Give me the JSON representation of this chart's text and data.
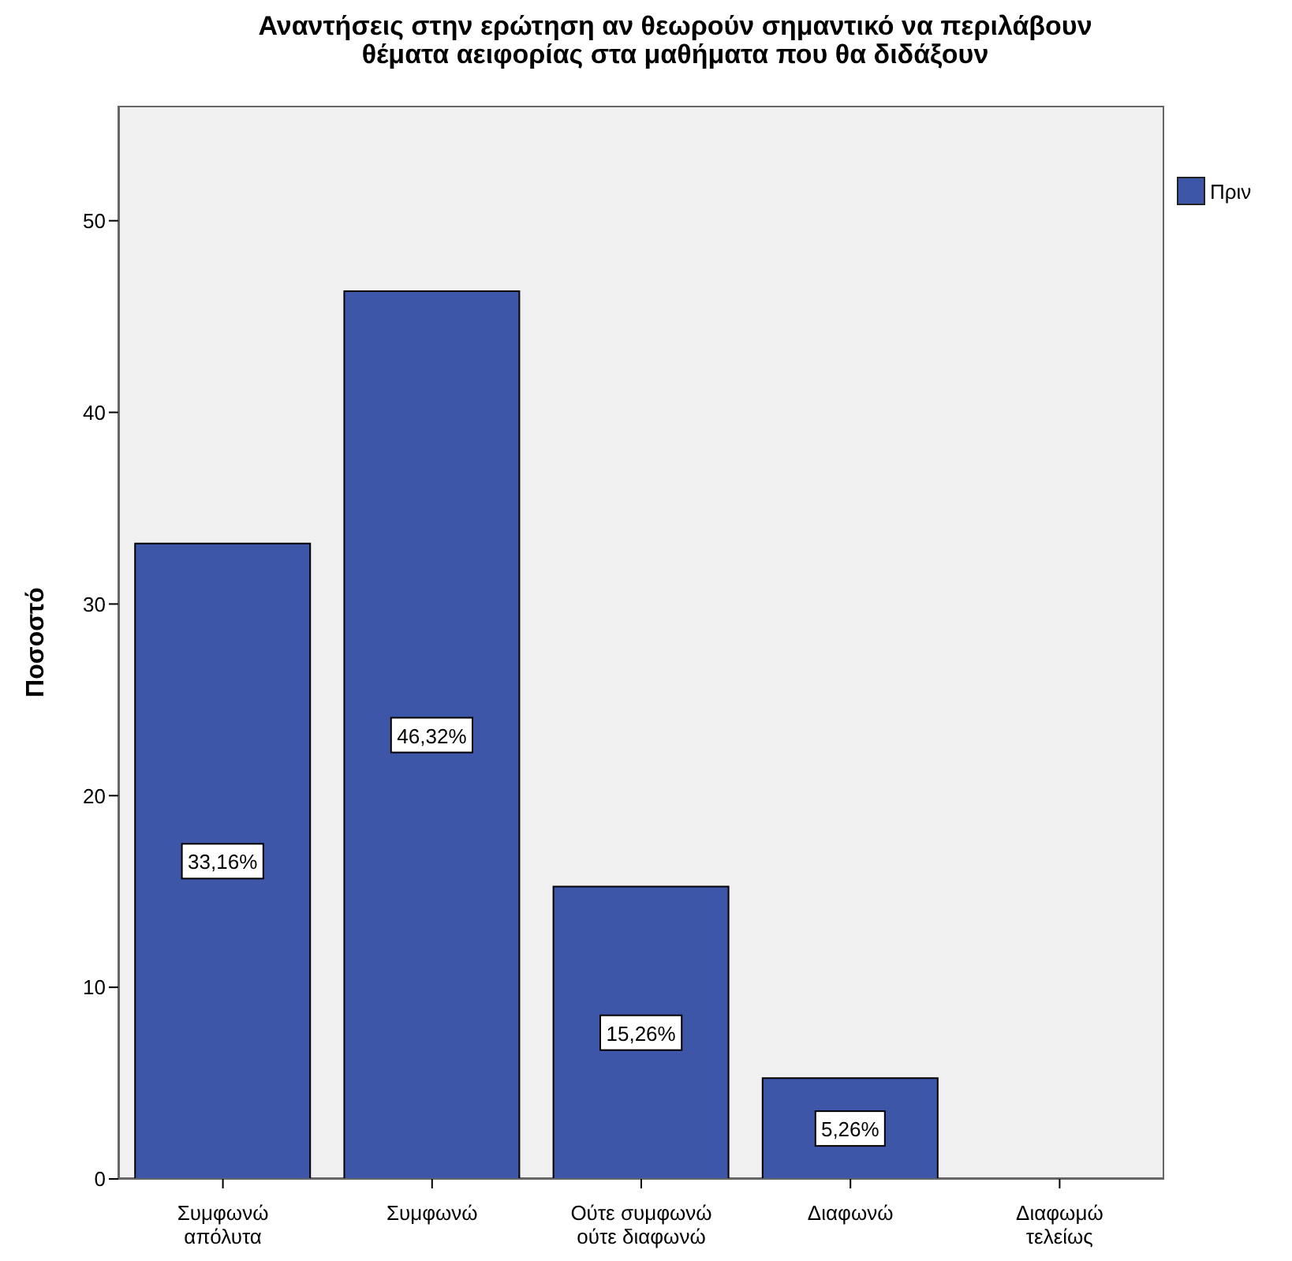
{
  "chart_data": {
    "type": "bar",
    "title": "Αναντήσεις στην ερώτηση αν θεωρούν σημαντικό να περιλάβουν\nθέματα αειφορίας στα μαθήματα που θα διδάξουν",
    "ylabel": "Ποσοστό",
    "categories": [
      "Συμφωνώ\nαπόλυτα",
      "Συμφωνώ",
      "Ούτε συμφωνώ\nούτε διαφωνώ",
      "Διαφωνώ",
      "Διαφωμώ\nτελείως"
    ],
    "series": [
      {
        "name": "Πριν",
        "color": "#3d56a8",
        "values": [
          33.16,
          46.32,
          15.26,
          5.26,
          0
        ],
        "value_labels": [
          "33,16%",
          "46,32%",
          "15,26%",
          "5,26%",
          null
        ]
      }
    ],
    "ylim": [
      0,
      56
    ],
    "yticks": [
      0,
      10,
      20,
      30,
      40,
      50
    ],
    "legend": "top right"
  }
}
